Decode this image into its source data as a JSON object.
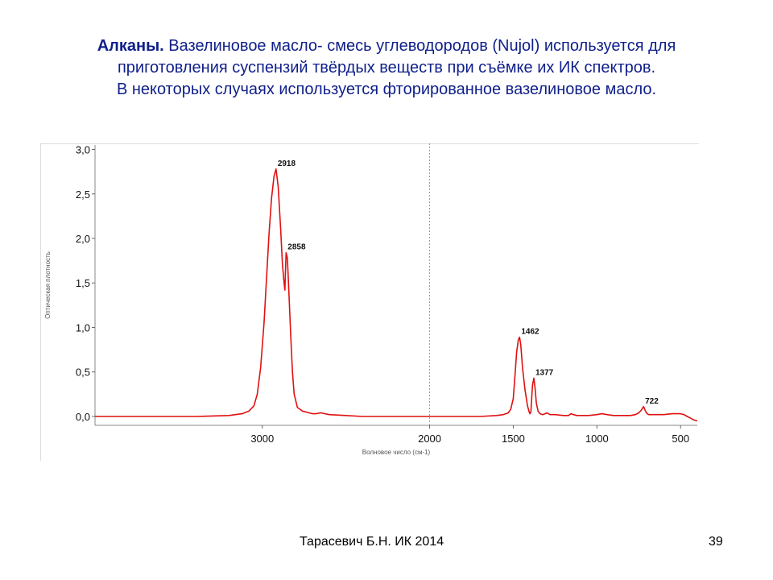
{
  "slide": {
    "title_bold": "Алканы.",
    "title_line1_rest": " Вазелиновое масло- смесь углеводородов (Nujol) используется для",
    "title_line2": "приготовления суспензий твёрдых веществ при съёмке их ИК  спектров.",
    "title_line3": "В некоторых случаях используется фторированное вазелиновое масло.",
    "footer_author": "Тарасевич Б.Н.  ИК 2014",
    "page_number": "39"
  },
  "chart_data": {
    "type": "line",
    "xlabel": "Волновое число (см-1)",
    "ylabel": "Оптическая плотность",
    "xlim": [
      4000,
      400
    ],
    "ylim": [
      -0.1,
      3.05
    ],
    "x_reversed": true,
    "grid": false,
    "colors": {
      "line": "#e01010",
      "axis": "#888888",
      "divider": "#999999"
    },
    "x_ticks": [
      3000,
      2000,
      1500,
      1000,
      500
    ],
    "x_tick_labels": [
      "3000",
      "2000",
      "1500",
      "1000",
      "500"
    ],
    "y_ticks": [
      0.0,
      0.5,
      1.0,
      1.5,
      2.0,
      2.5,
      3.0
    ],
    "y_tick_labels": [
      "0,0",
      "0,5",
      "1,0",
      "1,5",
      "2,0",
      "2,5",
      "3,0"
    ],
    "divider_at": 2000,
    "series": [
      {
        "x": [
          4000,
          3600,
          3400,
          3200,
          3120,
          3080,
          3050,
          3030,
          3010,
          2990,
          2975,
          2960,
          2945,
          2930,
          2918,
          2905,
          2890,
          2880,
          2870,
          2865,
          2858,
          2850,
          2840,
          2830,
          2820,
          2810,
          2790,
          2760,
          2720,
          2700,
          2680,
          2650,
          2600,
          2500,
          2400,
          2200,
          2000,
          1800,
          1700,
          1600,
          1560,
          1530,
          1515,
          1500,
          1490,
          1480,
          1470,
          1462,
          1455,
          1445,
          1430,
          1415,
          1405,
          1400,
          1395,
          1390,
          1385,
          1377,
          1370,
          1362,
          1352,
          1340,
          1325,
          1310,
          1300,
          1290,
          1280,
          1250,
          1200,
          1170,
          1155,
          1140,
          1120,
          1100,
          1050,
          1000,
          970,
          940,
          900,
          850,
          800,
          770,
          750,
          735,
          725,
          722,
          718,
          710,
          700,
          690,
          670,
          650,
          600,
          550,
          500,
          480,
          460,
          440,
          420,
          400
        ],
        "y": [
          0.0,
          0.0,
          0.0,
          0.01,
          0.03,
          0.06,
          0.12,
          0.25,
          0.55,
          1.05,
          1.55,
          2.05,
          2.45,
          2.7,
          2.78,
          2.58,
          2.1,
          1.72,
          1.5,
          1.42,
          1.84,
          1.78,
          1.35,
          0.9,
          0.5,
          0.25,
          0.1,
          0.06,
          0.04,
          0.03,
          0.03,
          0.04,
          0.02,
          0.01,
          0.0,
          0.0,
          0.0,
          0.0,
          0.0,
          0.01,
          0.02,
          0.04,
          0.08,
          0.2,
          0.45,
          0.72,
          0.86,
          0.89,
          0.8,
          0.55,
          0.3,
          0.12,
          0.05,
          0.03,
          0.05,
          0.2,
          0.35,
          0.43,
          0.32,
          0.15,
          0.06,
          0.03,
          0.02,
          0.03,
          0.04,
          0.03,
          0.02,
          0.02,
          0.01,
          0.01,
          0.03,
          0.02,
          0.01,
          0.01,
          0.01,
          0.02,
          0.03,
          0.02,
          0.01,
          0.01,
          0.01,
          0.02,
          0.04,
          0.07,
          0.1,
          0.11,
          0.1,
          0.06,
          0.03,
          0.02,
          0.02,
          0.02,
          0.02,
          0.03,
          0.03,
          0.02,
          0.0,
          -0.02,
          -0.04,
          -0.05
        ]
      }
    ],
    "annotations": [
      {
        "x": 2918,
        "y": 2.78,
        "label": "2918"
      },
      {
        "x": 2858,
        "y": 1.84,
        "label": "2858"
      },
      {
        "x": 1462,
        "y": 0.89,
        "label": "1462"
      },
      {
        "x": 1377,
        "y": 0.43,
        "label": "1377"
      },
      {
        "x": 722,
        "y": 0.11,
        "label": "722"
      }
    ]
  }
}
